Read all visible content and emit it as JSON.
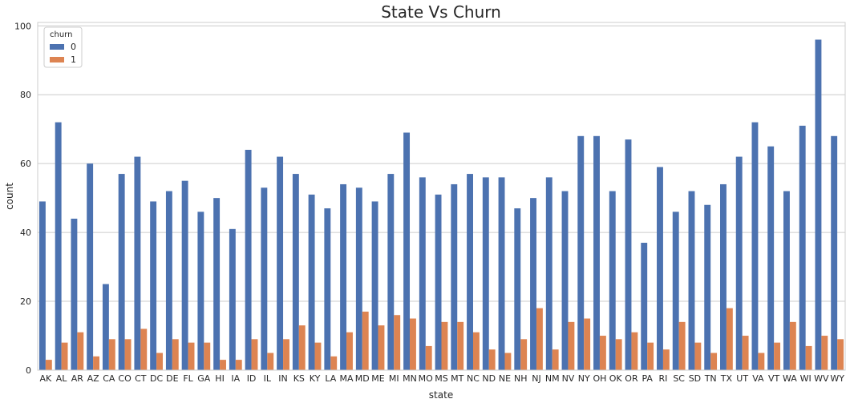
{
  "chart_data": {
    "type": "bar",
    "title": "State Vs Churn",
    "xlabel": "state",
    "ylabel": "count",
    "ylim": [
      0,
      101
    ],
    "yticks": [
      0,
      20,
      40,
      60,
      80,
      100
    ],
    "grid": "horizontal",
    "legend": {
      "title": "churn",
      "placement": "top-left"
    },
    "categories": [
      "AK",
      "AL",
      "AR",
      "AZ",
      "CA",
      "CO",
      "CT",
      "DC",
      "DE",
      "FL",
      "GA",
      "HI",
      "IA",
      "ID",
      "IL",
      "IN",
      "KS",
      "KY",
      "LA",
      "MA",
      "MD",
      "ME",
      "MI",
      "MN",
      "MO",
      "MS",
      "MT",
      "NC",
      "ND",
      "NE",
      "NH",
      "NJ",
      "NM",
      "NV",
      "NY",
      "OH",
      "OK",
      "OR",
      "PA",
      "RI",
      "SC",
      "SD",
      "TN",
      "TX",
      "UT",
      "VA",
      "VT",
      "WA",
      "WI",
      "WV",
      "WY"
    ],
    "series": [
      {
        "name": "0",
        "color": "#4c72b0",
        "values": [
          49,
          72,
          44,
          60,
          25,
          57,
          62,
          49,
          52,
          55,
          46,
          50,
          41,
          64,
          53,
          62,
          57,
          51,
          47,
          54,
          53,
          49,
          57,
          69,
          56,
          51,
          54,
          57,
          56,
          56,
          47,
          50,
          56,
          52,
          68,
          68,
          52,
          67,
          37,
          59,
          46,
          52,
          48,
          54,
          62,
          72,
          65,
          52,
          71,
          96,
          68
        ]
      },
      {
        "name": "1",
        "color": "#dd8452",
        "values": [
          3,
          8,
          11,
          4,
          9,
          9,
          12,
          5,
          9,
          8,
          8,
          3,
          3,
          9,
          5,
          9,
          13,
          8,
          4,
          11,
          17,
          13,
          16,
          15,
          7,
          14,
          14,
          11,
          6,
          5,
          9,
          18,
          6,
          14,
          15,
          10,
          9,
          11,
          8,
          6,
          14,
          8,
          5,
          18,
          10,
          5,
          8,
          14,
          7,
          10,
          9
        ]
      }
    ]
  }
}
